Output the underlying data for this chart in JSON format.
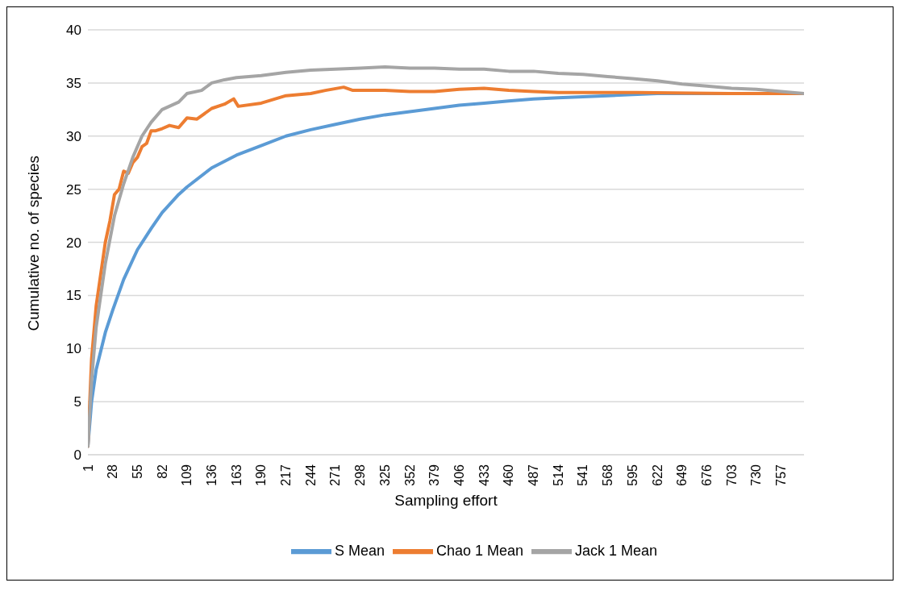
{
  "chart_data": {
    "type": "line",
    "xlabel": "Sampling effort",
    "ylabel": "Cumulative no. of species",
    "xlim": [
      1,
      782
    ],
    "xticks": [
      1,
      28,
      55,
      82,
      109,
      136,
      163,
      190,
      217,
      244,
      271,
      298,
      325,
      352,
      379,
      406,
      433,
      460,
      487,
      514,
      541,
      568,
      595,
      622,
      649,
      676,
      703,
      730,
      757
    ],
    "ylim": [
      0,
      40
    ],
    "yticks": [
      0,
      5,
      10,
      15,
      20,
      25,
      30,
      35,
      40
    ],
    "grid": "y",
    "legend": "bottom",
    "marker": "none",
    "line_style": "solid",
    "series": [
      {
        "name": "S Mean",
        "color": "#5b9bd5",
        "x": [
          1,
          5,
          10,
          20,
          28,
          40,
          55,
          70,
          82,
          100,
          109,
          136,
          163,
          190,
          217,
          244,
          271,
          298,
          325,
          352,
          379,
          406,
          433,
          460,
          487,
          514,
          541,
          568,
          595,
          622,
          782
        ],
        "values": [
          0.8,
          5,
          8,
          11.5,
          13.6,
          16.5,
          19.3,
          21.3,
          22.8,
          24.5,
          25.2,
          27,
          28.2,
          29.1,
          30,
          30.6,
          31.1,
          31.6,
          32,
          32.3,
          32.6,
          32.9,
          33.1,
          33.3,
          33.5,
          33.6,
          33.7,
          33.8,
          33.9,
          34,
          34
        ]
      },
      {
        "name": "Chao 1 Mean",
        "color": "#ed7d31",
        "x": [
          1,
          5,
          10,
          15,
          20,
          25,
          30,
          35,
          40,
          45,
          50,
          55,
          60,
          65,
          70,
          75,
          82,
          90,
          100,
          109,
          120,
          136,
          150,
          160,
          165,
          190,
          217,
          244,
          260,
          280,
          290,
          325,
          352,
          379,
          406,
          433,
          460,
          487,
          514,
          541,
          600,
          700,
          782
        ],
        "values": [
          0.8,
          9,
          14,
          17,
          20,
          22,
          24.5,
          25,
          26.7,
          26.5,
          27.5,
          28,
          29,
          29.3,
          30.5,
          30.5,
          30.7,
          31,
          30.8,
          31.7,
          31.6,
          32.6,
          33,
          33.5,
          32.8,
          33.1,
          33.8,
          34,
          34.3,
          34.6,
          34.3,
          34.3,
          34.2,
          34.2,
          34.4,
          34.5,
          34.3,
          34.2,
          34.1,
          34.1,
          34.1,
          34,
          34
        ]
      },
      {
        "name": "Jack 1 Mean",
        "color": "#a5a5a5",
        "x": [
          1,
          5,
          10,
          20,
          30,
          40,
          50,
          60,
          70,
          82,
          100,
          109,
          125,
          136,
          150,
          163,
          190,
          217,
          244,
          271,
          298,
          325,
          352,
          379,
          406,
          433,
          460,
          487,
          514,
          541,
          568,
          595,
          622,
          649,
          676,
          703,
          730,
          757,
          782
        ],
        "values": [
          0.8,
          7,
          12,
          18,
          22.5,
          25.5,
          28,
          30,
          31.3,
          32.5,
          33.2,
          34,
          34.3,
          35,
          35.3,
          35.5,
          35.7,
          36,
          36.2,
          36.3,
          36.4,
          36.5,
          36.4,
          36.4,
          36.3,
          36.3,
          36.1,
          36.1,
          35.9,
          35.8,
          35.6,
          35.4,
          35.2,
          34.9,
          34.7,
          34.5,
          34.4,
          34.2,
          34
        ]
      }
    ]
  }
}
